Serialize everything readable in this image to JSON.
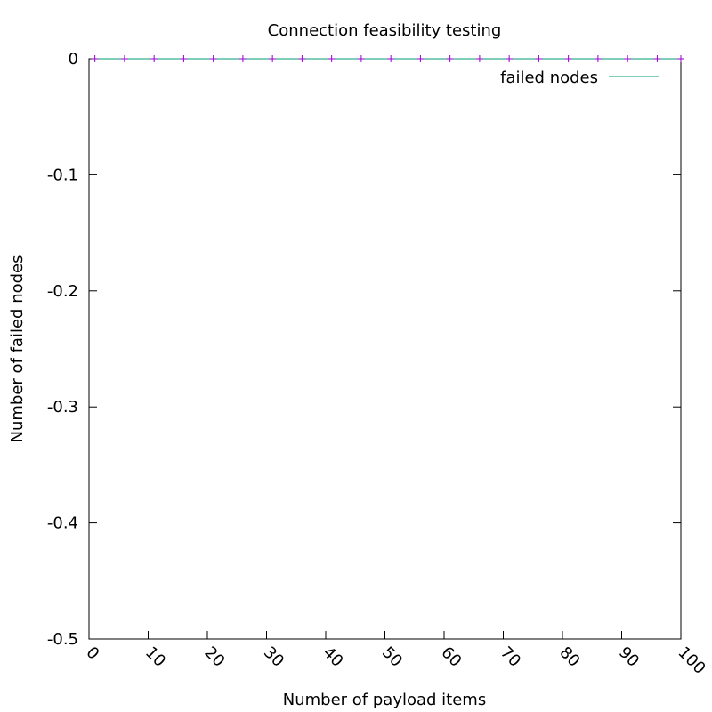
{
  "chart_data": {
    "type": "line",
    "title": "Connection feasibility testing",
    "xlabel": "Number of payload items",
    "ylabel": "Number of failed nodes",
    "xlim": [
      0,
      100
    ],
    "ylim": [
      -0.5,
      0
    ],
    "x_ticks": [
      "0",
      "10",
      "20",
      "30",
      "40",
      "50",
      "60",
      "70",
      "80",
      "90",
      "100"
    ],
    "y_ticks": [
      "0",
      "-0.1",
      "-0.2",
      "-0.3",
      "-0.4",
      "-0.5"
    ],
    "grid": false,
    "legend_position": "top-right",
    "series": [
      {
        "name": "failed nodes",
        "color": "#009e73",
        "marker_color": "#9400d3",
        "x": [
          1,
          6,
          11,
          16,
          21,
          26,
          31,
          36,
          41,
          46,
          51,
          56,
          61,
          66,
          71,
          76,
          81,
          86,
          91,
          96,
          100
        ],
        "y": [
          0,
          0,
          0,
          0,
          0,
          0,
          0,
          0,
          0,
          0,
          0,
          0,
          0,
          0,
          0,
          0,
          0,
          0,
          0,
          0,
          0
        ]
      }
    ]
  }
}
